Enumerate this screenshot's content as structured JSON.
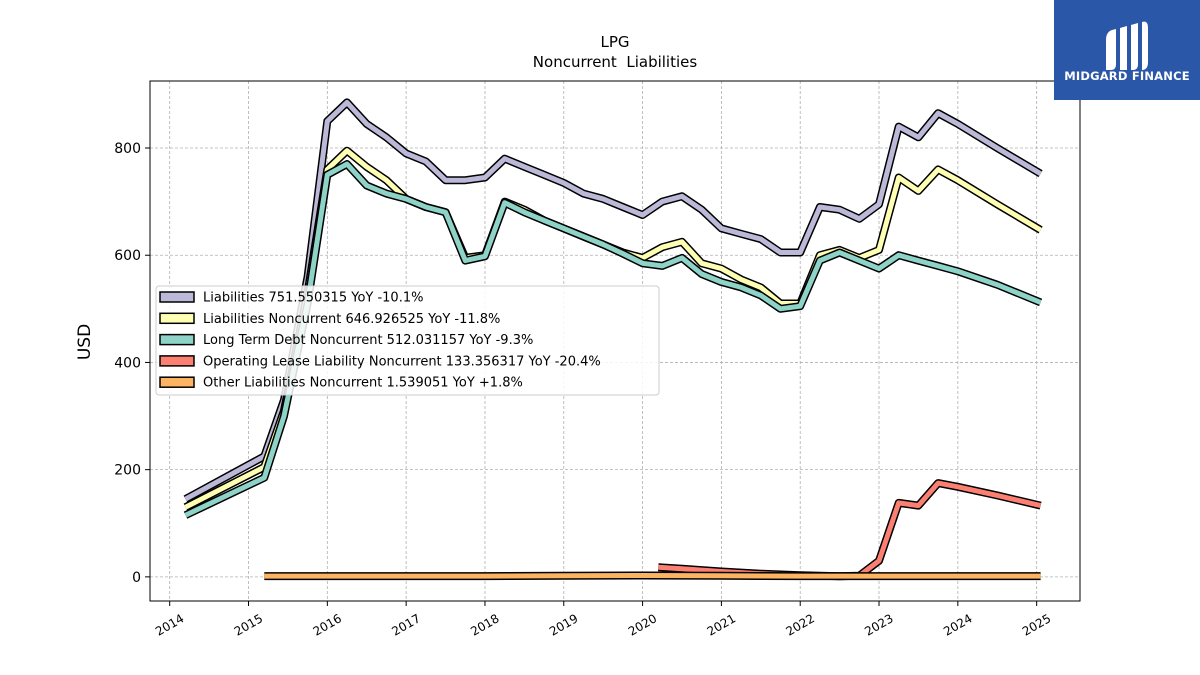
{
  "brand": {
    "name": "MIDGARD FINANCE",
    "background": "#2b57a8"
  },
  "chart_data": {
    "type": "line",
    "title": "LPG",
    "subtitle": "Noncurrent  Liabilities",
    "xlabel": "",
    "ylabel": "USD",
    "xlim": [
      2013.75,
      2025.55
    ],
    "ylim": [
      -45,
      925
    ],
    "x_ticks": [
      2014,
      2015,
      2016,
      2017,
      2018,
      2019,
      2020,
      2021,
      2022,
      2023,
      2024,
      2025
    ],
    "y_ticks": [
      0,
      200,
      400,
      600,
      800
    ],
    "grid": true,
    "legend_position": "center-left",
    "series": [
      {
        "name": "Liabilities  751.550315 YoY -10.1%",
        "color": "#bcb9d8",
        "x": [
          2014.2,
          2015.2,
          2015.45,
          2015.75,
          2016.0,
          2016.25,
          2016.5,
          2016.75,
          2017.0,
          2017.25,
          2017.5,
          2017.75,
          2018.0,
          2018.25,
          2018.5,
          2018.75,
          2019.0,
          2019.25,
          2019.5,
          2019.75,
          2020.0,
          2020.25,
          2020.5,
          2020.75,
          2021.0,
          2021.25,
          2021.5,
          2021.75,
          2022.0,
          2022.25,
          2022.5,
          2022.75,
          2023.0,
          2023.25,
          2023.5,
          2023.75,
          2024.0,
          2024.5,
          2025.05
        ],
        "y": [
          145,
          225,
          330,
          560,
          850,
          885,
          845,
          820,
          790,
          775,
          740,
          740,
          745,
          780,
          765,
          750,
          735,
          715,
          705,
          690,
          675,
          700,
          710,
          685,
          650,
          640,
          630,
          605,
          605,
          690,
          685,
          668,
          695,
          840,
          820,
          865,
          845,
          800,
          752
        ]
      },
      {
        "name": "Liabilities Noncurrent  646.926525 YoY -11.8%",
        "color": "#ffffb3",
        "x": [
          2014.2,
          2015.2,
          2015.45,
          2015.75,
          2016.0,
          2016.25,
          2016.5,
          2016.75,
          2017.0,
          2017.25,
          2017.5,
          2017.75,
          2018.0,
          2018.25,
          2018.5,
          2018.75,
          2019.0,
          2019.25,
          2019.5,
          2019.75,
          2020.0,
          2020.25,
          2020.5,
          2020.75,
          2021.0,
          2021.25,
          2021.5,
          2021.75,
          2022.0,
          2022.25,
          2022.5,
          2022.75,
          2023.0,
          2023.25,
          2023.5,
          2023.75,
          2024.0,
          2024.5,
          2025.05
        ],
        "y": [
          130,
          205,
          310,
          530,
          760,
          795,
          765,
          740,
          705,
          690,
          680,
          595,
          600,
          700,
          685,
          665,
          650,
          635,
          620,
          605,
          595,
          615,
          625,
          585,
          575,
          555,
          540,
          510,
          510,
          600,
          610,
          595,
          610,
          745,
          720,
          760,
          740,
          695,
          647
        ]
      },
      {
        "name": "Long Term Debt Noncurrent  512.031157 YoY -9.3%",
        "color": "#8dd3c7",
        "x": [
          2014.2,
          2015.2,
          2015.45,
          2015.75,
          2016.0,
          2016.25,
          2016.5,
          2016.75,
          2017.0,
          2017.25,
          2017.5,
          2017.75,
          2018.0,
          2018.25,
          2018.5,
          2018.75,
          2019.0,
          2019.25,
          2019.5,
          2019.75,
          2020.0,
          2020.25,
          2020.5,
          2020.75,
          2021.0,
          2021.25,
          2021.5,
          2021.75,
          2022.0,
          2022.25,
          2022.5,
          2022.75,
          2023.0,
          2023.25,
          2023.5,
          2023.75,
          2024.0,
          2024.5,
          2025.05
        ],
        "y": [
          115,
          185,
          300,
          510,
          750,
          770,
          730,
          715,
          705,
          690,
          680,
          590,
          598,
          698,
          680,
          665,
          650,
          635,
          620,
          603,
          585,
          580,
          595,
          565,
          550,
          540,
          525,
          500,
          505,
          590,
          605,
          590,
          575,
          600,
          590,
          580,
          570,
          545,
          512
        ]
      },
      {
        "name": "Operating Lease Liability Noncurrent  133.356317 YoY -20.4%",
        "color": "#fb8072",
        "x": [
          2020.2,
          2020.5,
          2021.0,
          2021.5,
          2022.0,
          2022.5,
          2022.75,
          2023.0,
          2023.25,
          2023.5,
          2023.75,
          2024.0,
          2024.5,
          2025.05
        ],
        "y": [
          18,
          15,
          10,
          6,
          3,
          1,
          2,
          30,
          138,
          133,
          175,
          168,
          152,
          133
        ]
      },
      {
        "name": "Other Liabilities Noncurrent  1.539051 YoY +1.8%",
        "color": "#fdb462",
        "x": [
          2015.2,
          2016.0,
          2017.0,
          2018.0,
          2019.0,
          2020.0,
          2021.0,
          2022.0,
          2023.0,
          2024.0,
          2025.05
        ],
        "y": [
          1.5,
          1.5,
          1.5,
          1.5,
          2.0,
          2.5,
          2.0,
          1.5,
          1.5,
          1.5,
          1.5
        ]
      }
    ]
  }
}
